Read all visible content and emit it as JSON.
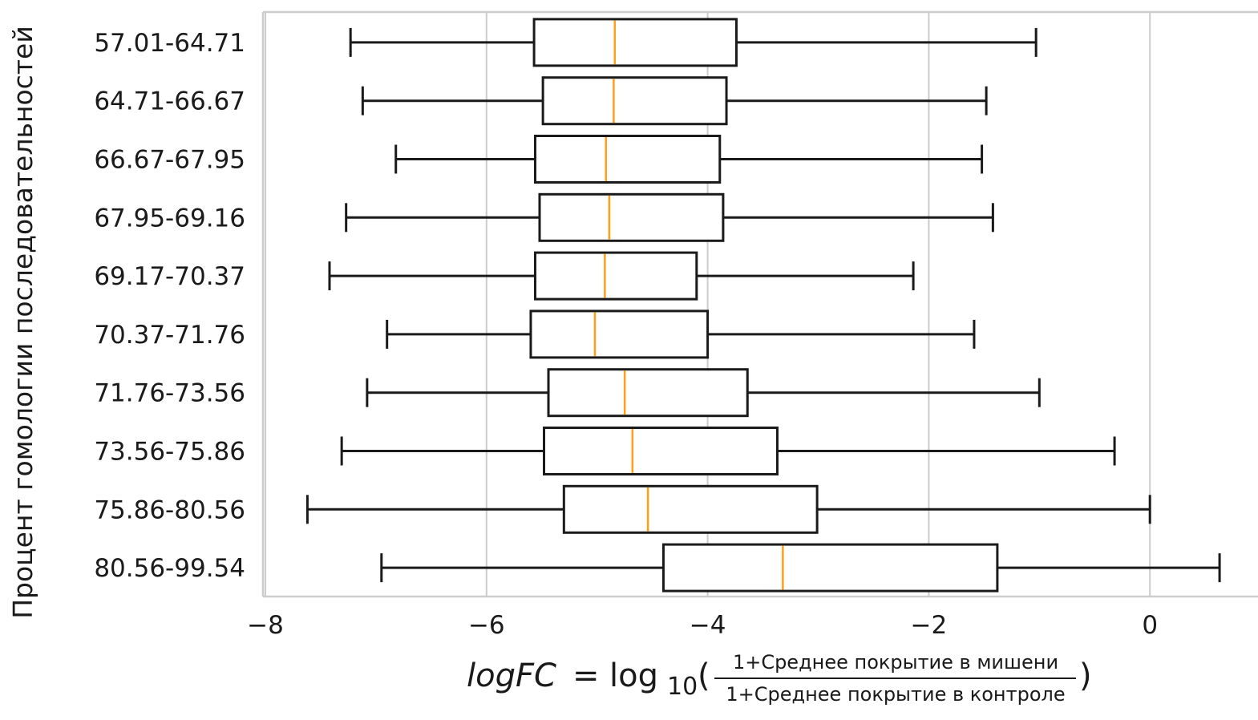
{
  "chart_data": {
    "type": "boxplot",
    "orientation": "horizontal",
    "ylabel": "Процент гомологии последовательностей",
    "xlabel": {
      "lhs": "logFC",
      "equals": "=",
      "func": "log",
      "sub": "10",
      "open_paren": "(",
      "close_paren": ")",
      "numerator": "1+Среднее покрытие в мишени",
      "denominator": "1+Среднее покрытие в контроле"
    },
    "xlim": [
      -8,
      1
    ],
    "xticks": [
      -8,
      -6,
      -4,
      -2,
      0
    ],
    "xtick_labels": [
      "−8",
      "−6",
      "−4",
      "−2",
      "0"
    ],
    "grid": "vertical",
    "categories": [
      "57.01-64.71",
      "64.71-66.67",
      "66.67-67.95",
      "67.95-69.16",
      "69.17-70.37",
      "70.37-71.76",
      "71.76-73.56",
      "73.56-75.86",
      "75.86-80.56",
      "80.56-99.54"
    ],
    "boxes": [
      {
        "whisker_low": -7.23,
        "q1": -5.57,
        "median": -4.84,
        "q3": -3.74,
        "whisker_high": -1.03
      },
      {
        "whisker_low": -7.12,
        "q1": -5.49,
        "median": -4.85,
        "q3": -3.83,
        "whisker_high": -1.48
      },
      {
        "whisker_low": -6.82,
        "q1": -5.56,
        "median": -4.92,
        "q3": -3.89,
        "whisker_high": -1.52
      },
      {
        "whisker_low": -7.27,
        "q1": -5.52,
        "median": -4.89,
        "q3": -3.86,
        "whisker_high": -1.42
      },
      {
        "whisker_low": -7.42,
        "q1": -5.56,
        "median": -4.93,
        "q3": -4.1,
        "whisker_high": -2.14
      },
      {
        "whisker_low": -6.9,
        "q1": -5.6,
        "median": -5.02,
        "q3": -4.0,
        "whisker_high": -1.59
      },
      {
        "whisker_low": -7.08,
        "q1": -5.44,
        "median": -4.75,
        "q3": -3.64,
        "whisker_high": -1.0
      },
      {
        "whisker_low": -7.31,
        "q1": -5.48,
        "median": -4.68,
        "q3": -3.37,
        "whisker_high": -0.32
      },
      {
        "whisker_low": -7.62,
        "q1": -5.3,
        "median": -4.54,
        "q3": -3.01,
        "whisker_high": 0.0
      },
      {
        "whisker_low": -6.95,
        "q1": -4.4,
        "median": -3.32,
        "q3": -1.38,
        "whisker_high": 0.63
      }
    ],
    "colors": {
      "box_edge": "#1a1a1a",
      "median": "#ff9f1a",
      "grid": "#cccccc",
      "spine": "#cccccc"
    }
  }
}
